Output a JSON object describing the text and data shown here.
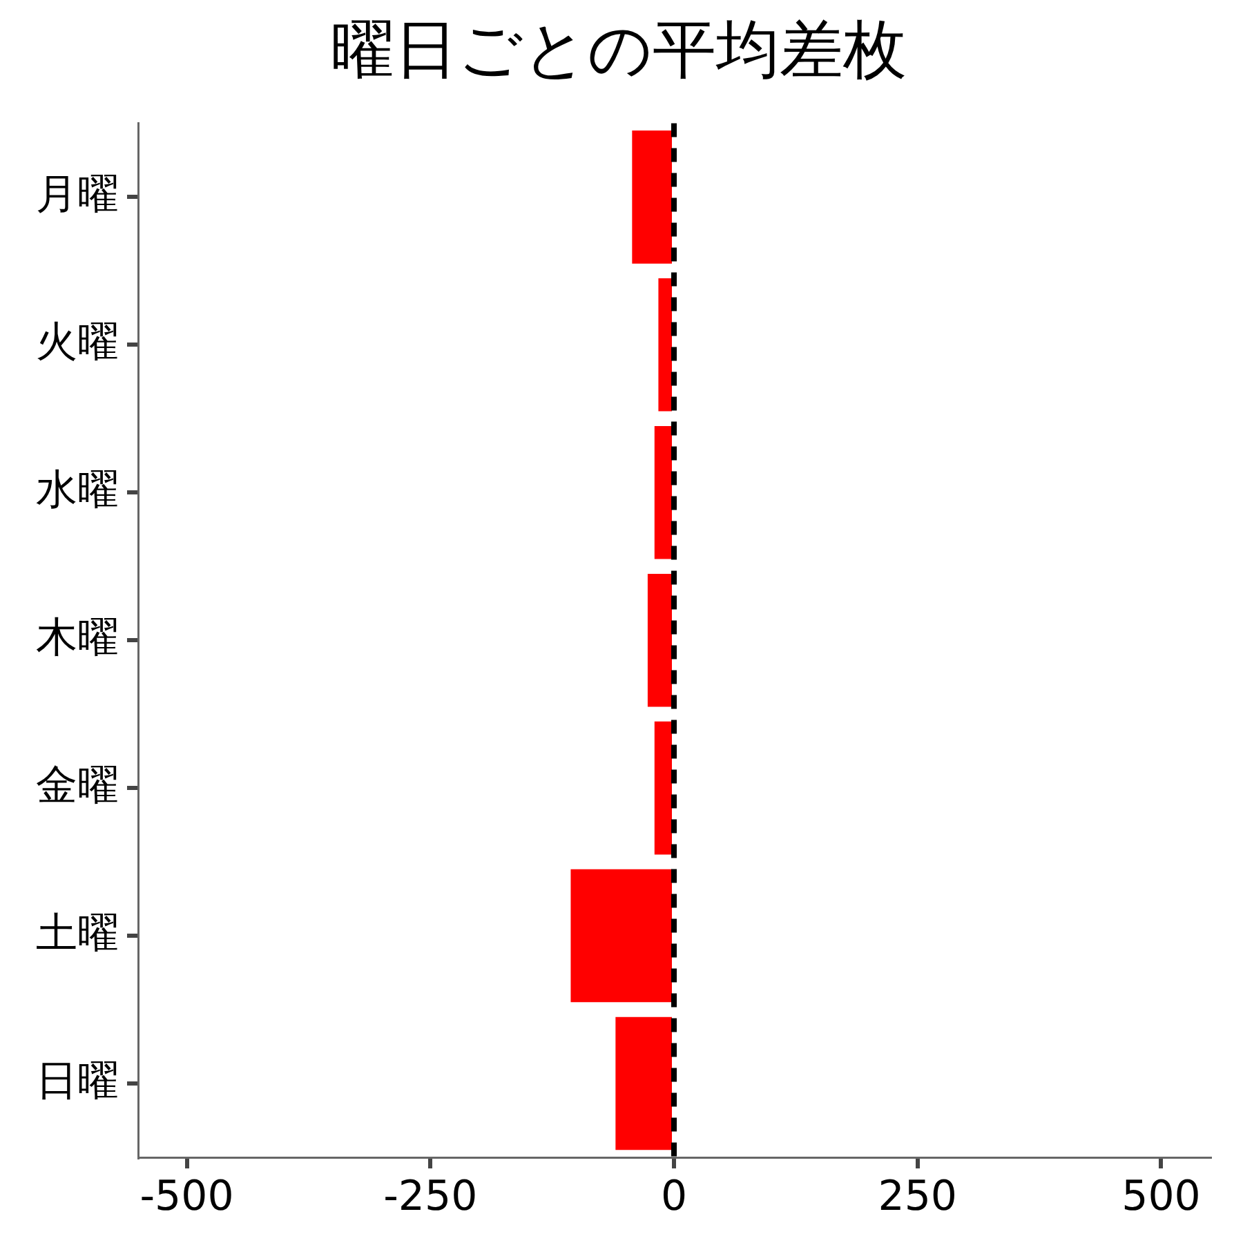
{
  "chart_data": {
    "type": "bar",
    "orientation": "horizontal",
    "title": "曜日ごとの平均差枚",
    "categories": [
      "月曜",
      "火曜",
      "水曜",
      "木曜",
      "金曜",
      "土曜",
      "日曜"
    ],
    "values": [
      -43,
      -16,
      -20,
      -27,
      -20,
      -106,
      -60
    ],
    "color": "#ff0000",
    "xlim": [
      -550,
      550
    ],
    "xticks": [
      -500,
      -250,
      0,
      250,
      500
    ],
    "grid": false,
    "legend": false,
    "ref_lines": [
      {
        "axis": "x",
        "value": 0,
        "color": "#000000",
        "line_style": "dashed"
      }
    ]
  }
}
